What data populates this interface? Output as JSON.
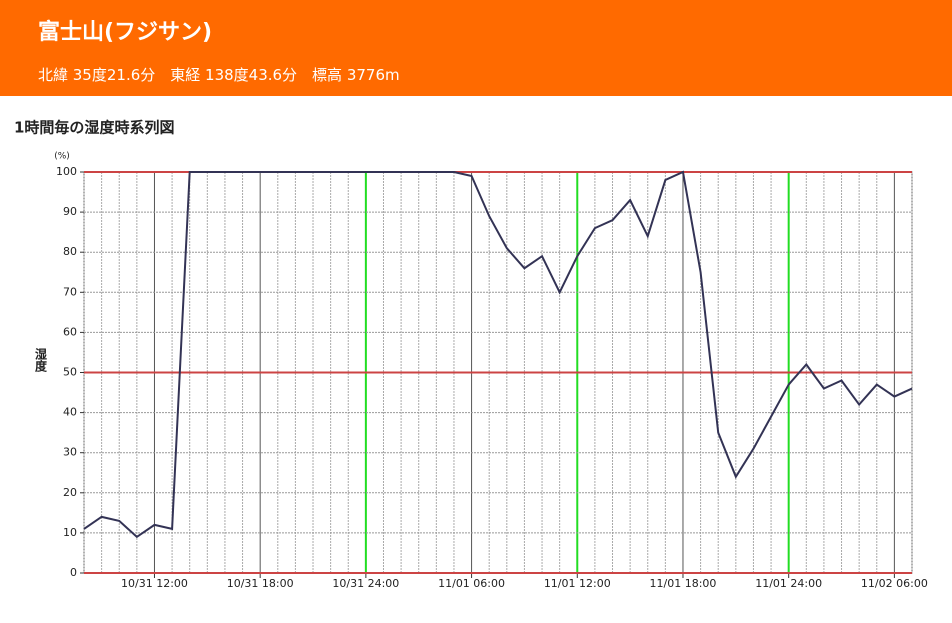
{
  "header": {
    "title": "富士山(フジサン)",
    "subtitle": "北緯 35度21.6分　東経 138度43.6分　標高 3776m"
  },
  "chart_data": {
    "type": "line",
    "title": "1時間毎の湿度時系列図",
    "y_label": "湿度",
    "y_unit": "(%)",
    "categories": [
      null,
      null,
      null,
      null,
      "10/31 12:00",
      null,
      null,
      null,
      null,
      null,
      "10/31 18:00",
      null,
      null,
      null,
      null,
      null,
      "10/31 24:00",
      null,
      null,
      null,
      null,
      null,
      "11/01 06:00",
      null,
      null,
      null,
      null,
      null,
      "11/01 12:00",
      null,
      null,
      null,
      null,
      null,
      "11/01 18:00",
      null,
      null,
      null,
      null,
      null,
      "11/01 24:00",
      null,
      null,
      null,
      null,
      null,
      "11/02 06:00",
      null
    ],
    "series": [
      {
        "name": "湿度",
        "color": "#333355",
        "values": [
          11,
          14,
          13,
          9,
          12,
          11,
          100,
          100,
          100,
          100,
          100,
          100,
          100,
          100,
          100,
          100,
          100,
          100,
          100,
          100,
          100,
          100,
          99,
          89,
          81,
          76,
          79,
          70,
          79,
          86,
          88,
          93,
          84,
          98,
          100,
          75,
          35,
          24,
          31,
          39,
          47,
          52,
          46,
          48,
          42,
          47,
          44,
          46
        ]
      }
    ],
    "ylim": [
      0,
      100
    ],
    "yticks": [
      0,
      10,
      20,
      30,
      40,
      50,
      60,
      70,
      80,
      90,
      100
    ],
    "grid": true,
    "ref_lines": [
      0,
      50,
      100
    ],
    "ref_color": "#cc4444",
    "highlight_categories": [
      16,
      28,
      40
    ],
    "highlight_color": "#22dd22"
  }
}
